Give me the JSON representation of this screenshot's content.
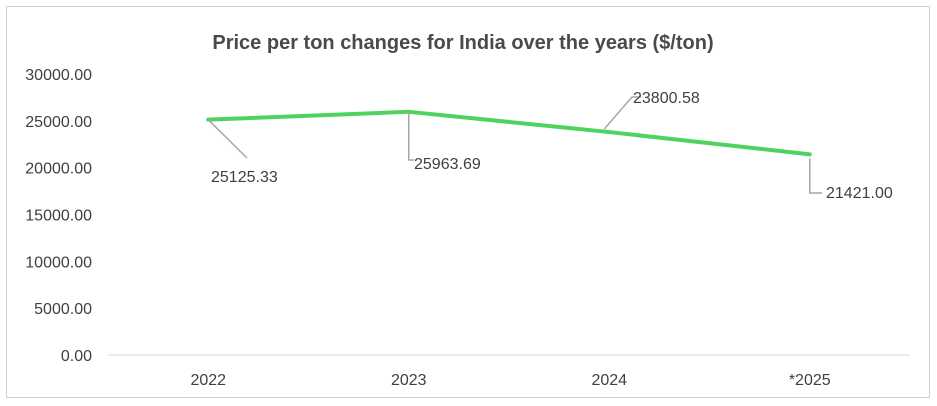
{
  "chart_data": {
    "type": "line",
    "title": "Price per ton changes for India over the years ($/ton)",
    "xlabel": "",
    "ylabel": "",
    "categories": [
      "2022",
      "2023",
      "2024",
      "*2025"
    ],
    "values": [
      25125.33,
      25963.69,
      23800.58,
      21421.0
    ],
    "value_labels": [
      "25125.33",
      "25963.69",
      "23800.58",
      "21421.00"
    ],
    "yticks": [
      "0.00",
      "5000.00",
      "10000.00",
      "15000.00",
      "20000.00",
      "25000.00",
      "30000.00"
    ],
    "ylim": [
      0,
      30000
    ],
    "grid": false,
    "legend": "none",
    "line_color": "#4ed35f",
    "leader_color": "#a6a6a6",
    "axis_color": "#d9d9d9"
  }
}
